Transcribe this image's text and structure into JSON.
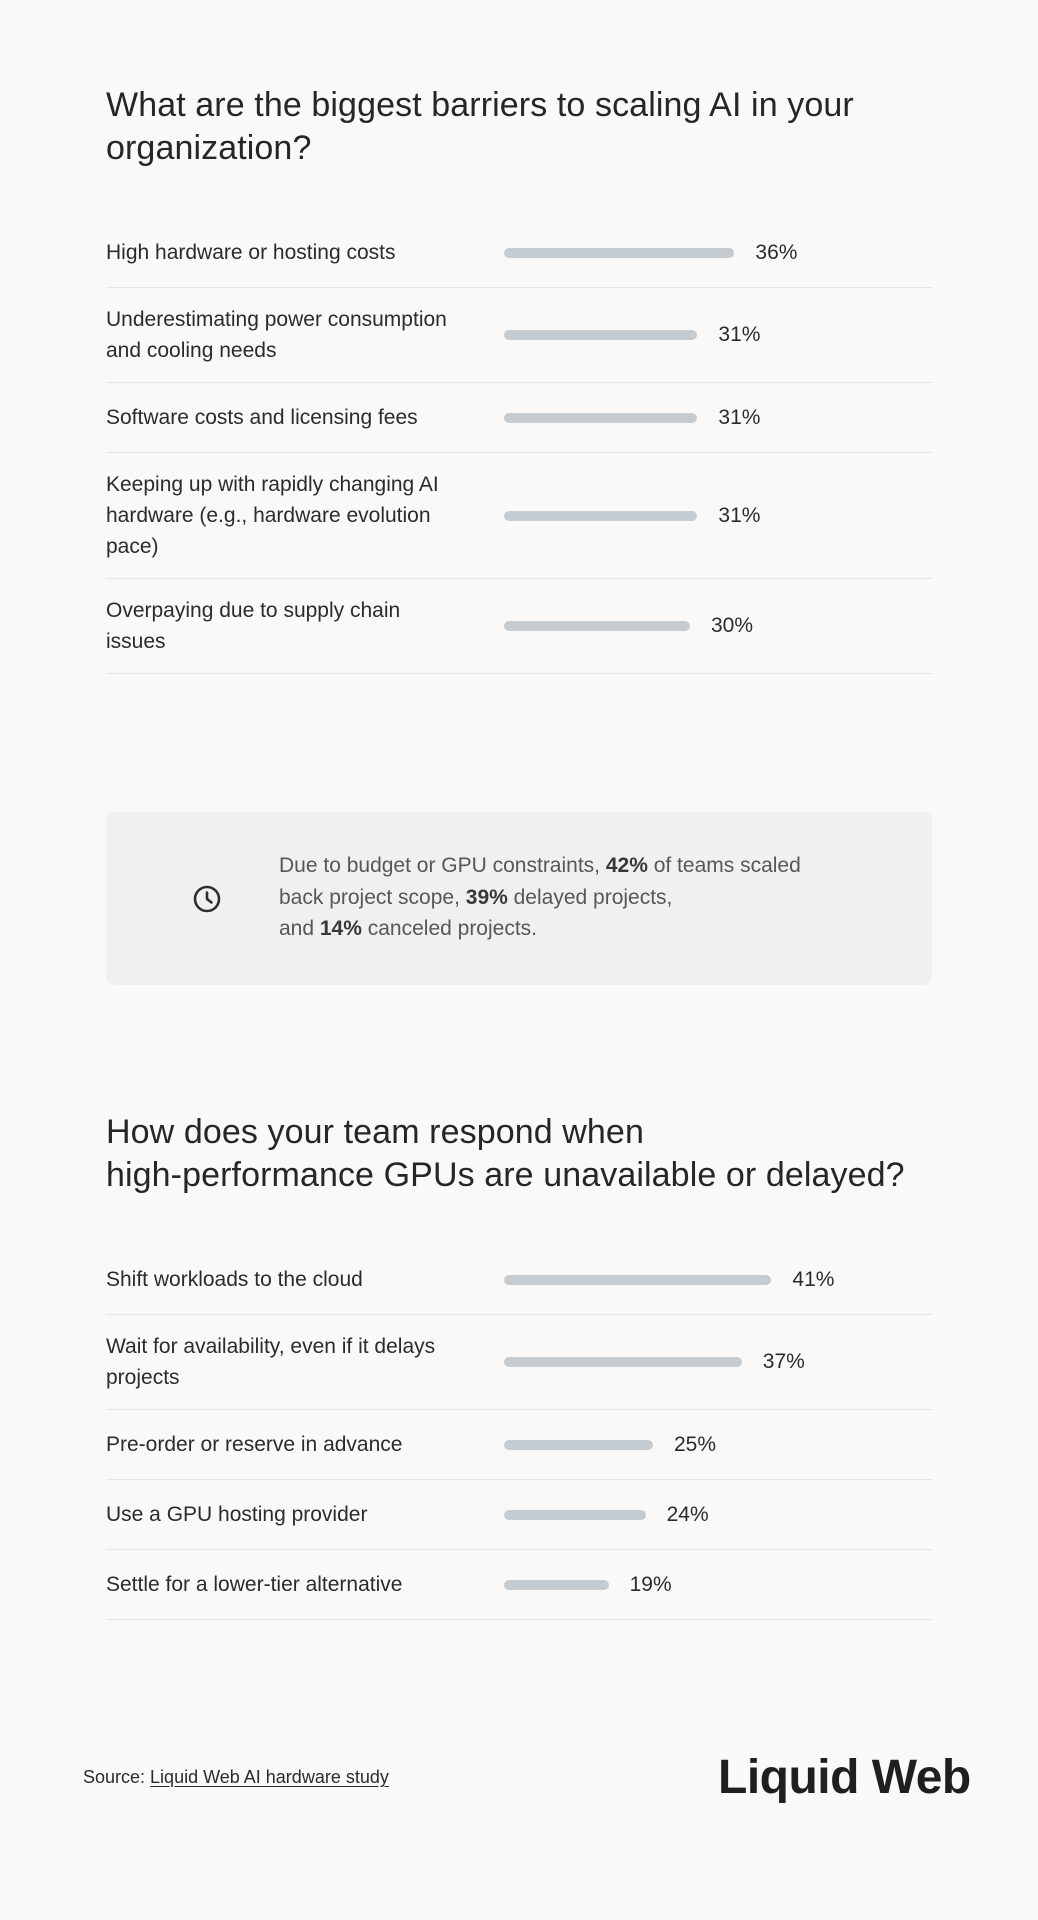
{
  "section1": {
    "title_line1": "What are the biggest barriers to scaling AI in your",
    "title_line2": "organization?"
  },
  "section2": {
    "title_line1": "How does your team respond when",
    "title_line2": "high-performance GPUs are unavailable or delayed?"
  },
  "chart_data": [
    {
      "type": "bar",
      "title": "What are the biggest barriers to scaling AI in your organization?",
      "unit": "%",
      "categories": [
        [
          "High hardware or hosting costs"
        ],
        [
          "Underestimating power consumption",
          "and cooling needs"
        ],
        [
          "Software costs and licensing fees"
        ],
        [
          "Keeping up with rapidly changing AI",
          "hardware (e.g., hardware evolution",
          "pace)"
        ],
        [
          "Overpaying due to supply chain",
          "issues"
        ]
      ],
      "values": [
        36,
        31,
        31,
        31,
        30
      ],
      "labels": [
        "36%",
        "31%",
        "31%",
        "31%",
        "30%"
      ]
    },
    {
      "type": "bar",
      "title": "How does your team respond when high-performance GPUs are unavailable or delayed?",
      "unit": "%",
      "categories": [
        [
          "Shift workloads to the cloud"
        ],
        [
          "Wait for availability, even if it delays",
          "projects"
        ],
        [
          "Pre-order or reserve in advance"
        ],
        [
          "Use a GPU hosting provider"
        ],
        [
          "Settle for a lower-tier alternative"
        ]
      ],
      "values": [
        41,
        37,
        25,
        24,
        19
      ],
      "labels": [
        "41%",
        "37%",
        "25%",
        "24%",
        "19%"
      ]
    }
  ],
  "callout": {
    "icon": "clock-icon",
    "t1": "Due to budget or GPU constraints, ",
    "b1": "42%",
    "t2": " of teams scaled",
    "t3": "back project scope, ",
    "b2": "39%",
    "t4": " delayed projects,",
    "t5": "and ",
    "b3": "14%",
    "t6": " canceled projects."
  },
  "footer": {
    "source_prefix": "Source: ",
    "source_link": "Liquid Web AI hardware study",
    "logo": "Liquid Web"
  },
  "colors": {
    "bar": "#c5ccd1",
    "callout_bg": "#eff0f1",
    "background": "#faf9f8"
  }
}
